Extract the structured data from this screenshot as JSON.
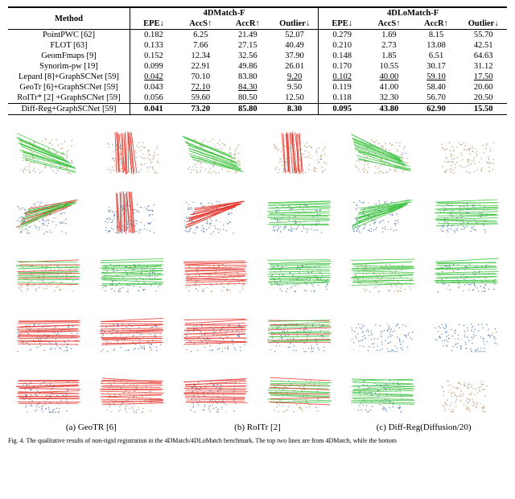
{
  "table": {
    "header_method": "Method",
    "group1": "4DMatch-F",
    "group2": "4DLoMatch-F",
    "metrics": [
      "EPE↓",
      "AccS↑",
      "AccR↑",
      "Outlier↓",
      "EPE↓",
      "AccS↑",
      "AccR↑",
      "Outlier↓"
    ],
    "rows": [
      {
        "method": "PointPWC [62]",
        "vals": [
          "0.182",
          "6.25",
          "21.49",
          "52.07",
          "0.279",
          "1.69",
          "8.15",
          "55.70"
        ],
        "style": [
          "",
          "",
          "",
          "",
          "",
          "",
          "",
          ""
        ]
      },
      {
        "method": "FLOT [63]",
        "vals": [
          "0.133",
          "7.66",
          "27.15",
          "40.49",
          "0.210",
          "2.73",
          "13.08",
          "42.51"
        ],
        "style": [
          "",
          "",
          "",
          "",
          "",
          "",
          "",
          ""
        ]
      },
      {
        "method": "GeomFmaps [9]",
        "vals": [
          "0.152",
          "12.34",
          "32.56",
          "37.90",
          "0.148",
          "1.85",
          "6.51",
          "64.63"
        ],
        "style": [
          "",
          "",
          "",
          "",
          "",
          "",
          "",
          ""
        ]
      },
      {
        "method": "Synorim-pw [19]",
        "vals": [
          "0.099",
          "22.91",
          "49.86",
          "26.01",
          "0.170",
          "10.55",
          "30.17",
          "31.12"
        ],
        "style": [
          "",
          "",
          "",
          "",
          "",
          "",
          "",
          ""
        ]
      },
      {
        "method": "Lepard [8]+GraphSCNet [59]",
        "vals": [
          "0.042",
          "70.10",
          "83.80",
          "9.20",
          "0.102",
          "40.00",
          "59.10",
          "17.50"
        ],
        "style": [
          "u",
          "",
          "",
          "u",
          "u",
          "u",
          "u",
          "u"
        ]
      },
      {
        "method": "GeoTr [6]+GraphSCNet [59]",
        "vals": [
          "0.043",
          "72.10",
          "84.30",
          "9.50",
          "0.119",
          "41.00",
          "58.40",
          "20.60"
        ],
        "style": [
          "",
          "u",
          "u",
          "",
          "",
          "",
          "",
          ""
        ]
      },
      {
        "method": "RoITr* [2] +GraphSCNet [59]",
        "vals": [
          "0.056",
          "59.60",
          "80.50",
          "12.50",
          "0.118",
          "32.30",
          "56.70",
          "20.50"
        ],
        "style": [
          "",
          "",
          "",
          "",
          "",
          "",
          "",
          ""
        ]
      },
      {
        "method": "Diff-Reg+GraphSCNet [59]",
        "vals": [
          "0.041",
          "73.20",
          "85.80",
          "8.30",
          "0.095",
          "43.80",
          "62.90",
          "15.50"
        ],
        "style": [
          "b",
          "b",
          "b",
          "b",
          "b",
          "b",
          "b",
          "b"
        ]
      }
    ]
  },
  "figure": {
    "labels": [
      "(a) GeoTR [6]",
      "(b) RoITr [2]",
      "(c) Diff-Reg(Diffusion/20)"
    ],
    "caption_prefix": "Fig. 4.",
    "caption_rest": "The qualitative results of non-rigid registration in the 4DMatch/4DLoMatch benchmark. The top two lines are from 4DMatch, while the bottom",
    "colors": {
      "pcA": "#4a87d6",
      "pcB": "#e8b26a",
      "good": "#38c23a",
      "bad": "#e33127",
      "mix": "#c7a23b"
    }
  },
  "grid": {
    "rows": 5,
    "cols": 6,
    "cells": [
      [
        {
          "shape": "blob",
          "fillKey": "pcA",
          "lines": "good",
          "lineDir": "se"
        },
        {
          "shape": "animal",
          "fillKey": "pcA",
          "lines": "bad",
          "lineDir": "s"
        },
        {
          "shape": "blob",
          "fillKey": "pcA",
          "lines": "good",
          "lineDir": "se"
        },
        {
          "shape": "animal",
          "fillKey": "pcA",
          "lines": "bad",
          "lineDir": "s"
        },
        {
          "shape": "blob",
          "fillKey": "pcA",
          "lines": "good",
          "lineDir": "se"
        },
        {
          "shape": "animal",
          "fillKey": "pcA",
          "lines": "none",
          "lineDir": ""
        }
      ],
      [
        {
          "shape": "deer",
          "fillKey": "pcB",
          "lines": "mix",
          "lineDir": "ne"
        },
        {
          "shape": "deer2",
          "fillKey": "pcB",
          "lines": "bad",
          "lineDir": "s"
        },
        {
          "shape": "deer",
          "fillKey": "pcB",
          "lines": "bad",
          "lineDir": "ne"
        },
        {
          "shape": "deer2",
          "fillKey": "pcB",
          "lines": "good",
          "lineDir": "e"
        },
        {
          "shape": "deer",
          "fillKey": "pcB",
          "lines": "good",
          "lineDir": "ne"
        },
        {
          "shape": "deer2",
          "fillKey": "pcB",
          "lines": "good",
          "lineDir": "e"
        }
      ],
      [
        {
          "shape": "animal2",
          "fillKey": "pcA",
          "lines": "mix",
          "lineDir": "e"
        },
        {
          "shape": "animal2",
          "fillKey": "pcB",
          "lines": "good",
          "lineDir": "e"
        },
        {
          "shape": "animal2",
          "fillKey": "pcA",
          "lines": "bad",
          "lineDir": "e"
        },
        {
          "shape": "animal2",
          "fillKey": "pcB",
          "lines": "good",
          "lineDir": "e"
        },
        {
          "shape": "animal2",
          "fillKey": "pcA",
          "lines": "good",
          "lineDir": "e"
        },
        {
          "shape": "animal2",
          "fillKey": "pcB",
          "lines": "good",
          "lineDir": "e"
        }
      ],
      [
        {
          "shape": "rhino",
          "fillKey": "pcB",
          "lines": "bad",
          "lineDir": "e"
        },
        {
          "shape": "rhino",
          "fillKey": "pcB",
          "lines": "bad",
          "lineDir": "e"
        },
        {
          "shape": "rhino",
          "fillKey": "pcB",
          "lines": "bad",
          "lineDir": "e"
        },
        {
          "shape": "rhino",
          "fillKey": "pcB",
          "lines": "mix",
          "lineDir": "e"
        },
        {
          "shape": "rhino",
          "fillKey": "pcB",
          "lines": "none",
          "lineDir": ""
        },
        {
          "shape": "rhino",
          "fillKey": "pcB",
          "lines": "none",
          "lineDir": ""
        }
      ],
      [
        {
          "shape": "bear",
          "fillKey": "pcB",
          "lines": "bad",
          "lineDir": "e"
        },
        {
          "shape": "bear",
          "fillKey": "pcA",
          "lines": "bad",
          "lineDir": "w"
        },
        {
          "shape": "bear",
          "fillKey": "pcB",
          "lines": "bad",
          "lineDir": "e"
        },
        {
          "shape": "bear",
          "fillKey": "pcA",
          "lines": "mix",
          "lineDir": "w"
        },
        {
          "shape": "bear",
          "fillKey": "pcB",
          "lines": "good",
          "lineDir": "e"
        },
        {
          "shape": "bear",
          "fillKey": "pcA",
          "lines": "none",
          "lineDir": ""
        }
      ]
    ]
  }
}
